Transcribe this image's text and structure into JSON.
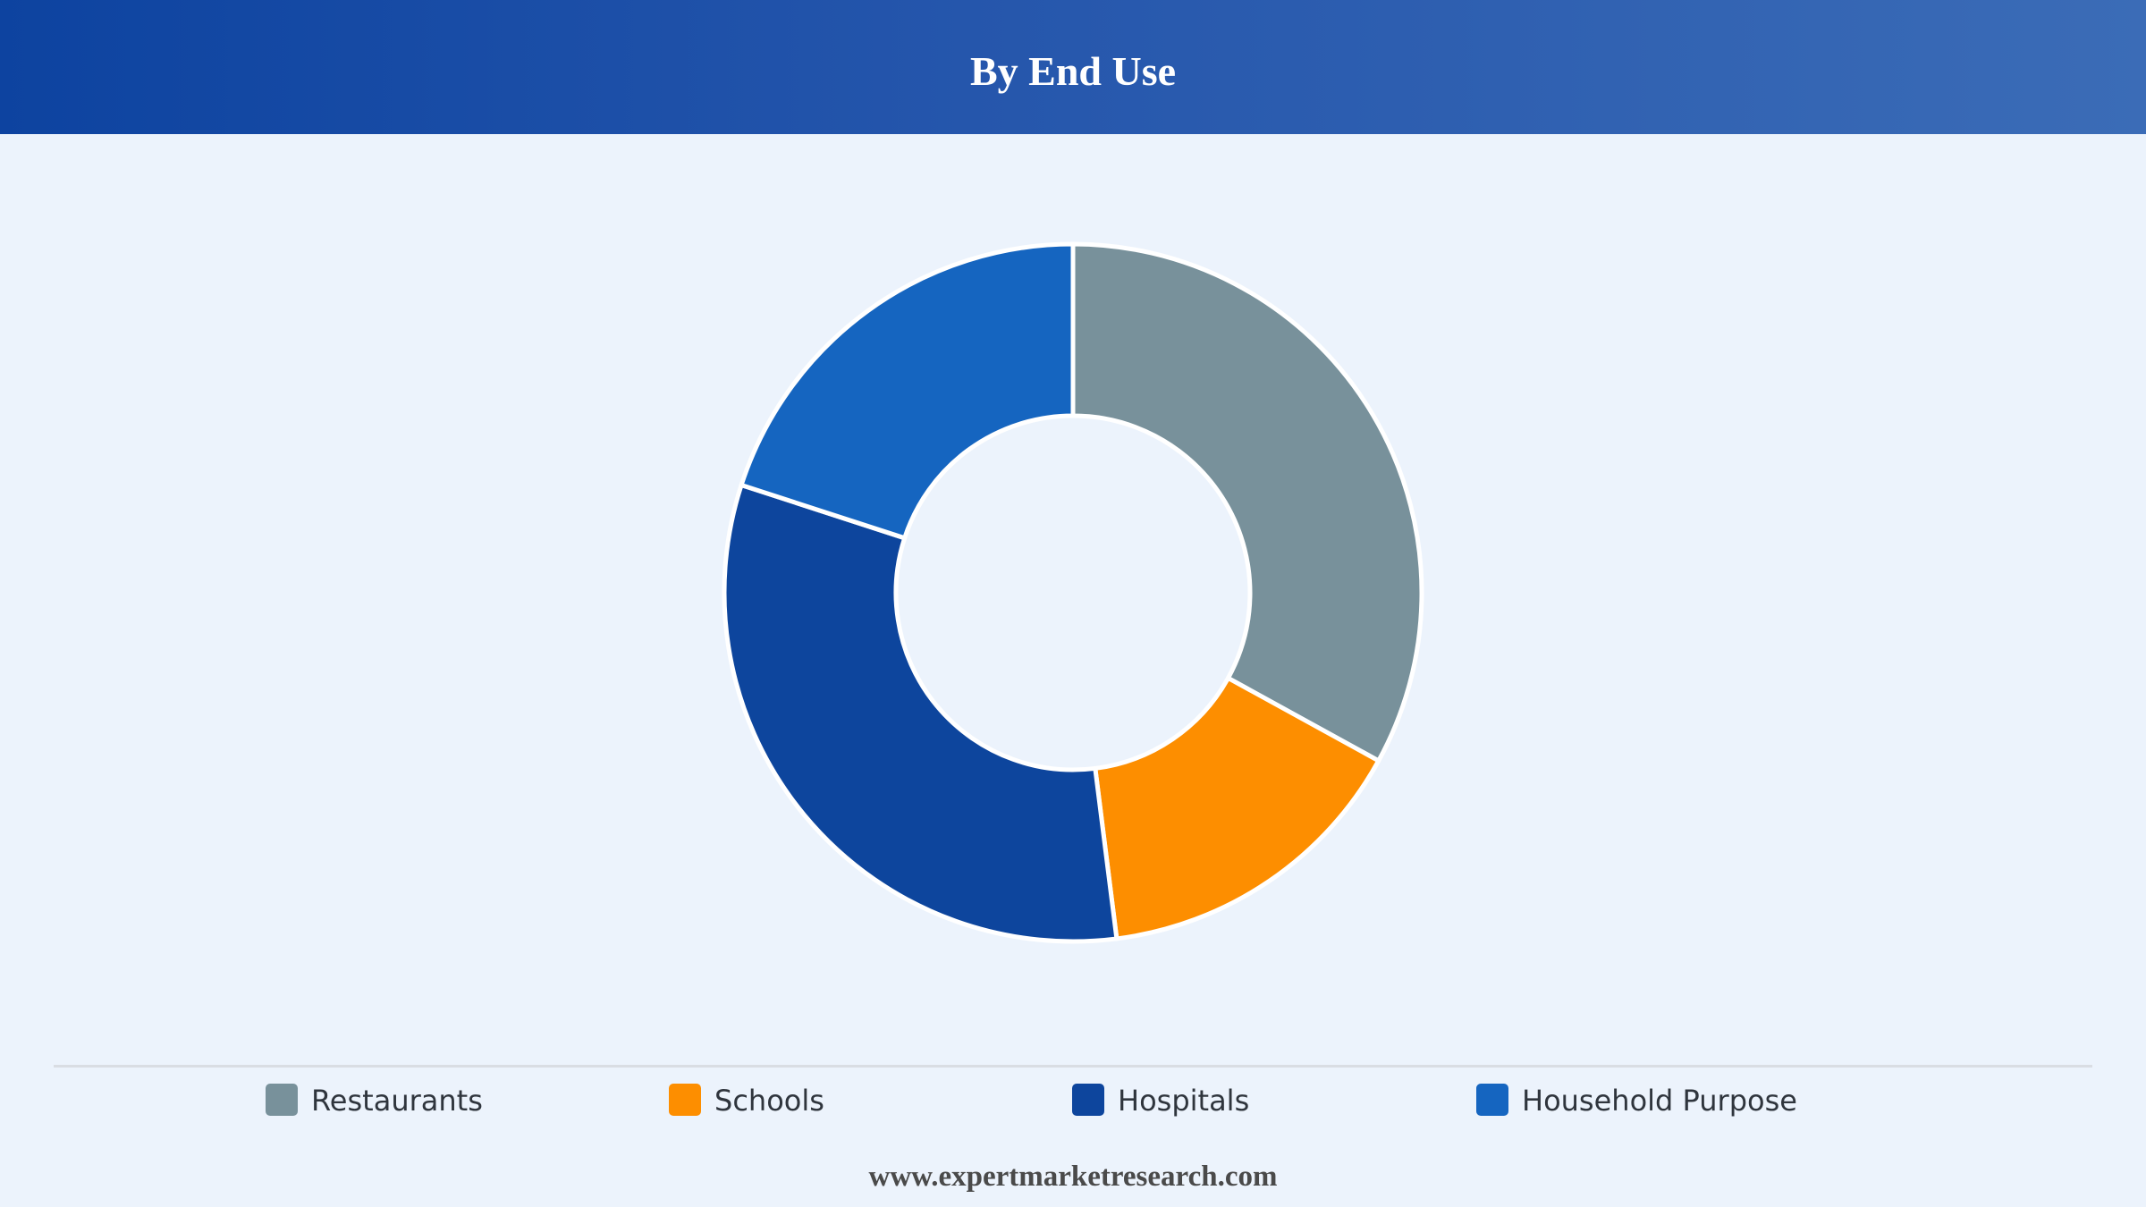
{
  "header": {
    "title": "By End Use"
  },
  "chart_data": {
    "type": "pie",
    "title": "By End Use",
    "donut": true,
    "legend_position": "bottom",
    "categories": [
      "Restaurants",
      "Schools",
      "Hospitals",
      "Household Purpose"
    ],
    "values": [
      33,
      15,
      32,
      20
    ],
    "unit": "%",
    "colors": [
      "#78919b",
      "#fd8e00",
      "#0d459d",
      "#1565c0"
    ]
  },
  "footer": {
    "source": "www.expertmarketresearch.com"
  },
  "theme": {
    "header_start": "#0d43a0",
    "header_end": "#3b6cb7",
    "background": "#ecf3fc"
  }
}
